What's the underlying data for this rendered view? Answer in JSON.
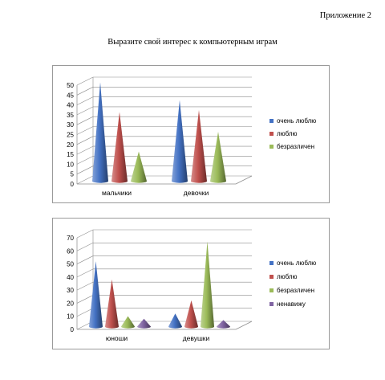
{
  "page": {
    "appendix_label": "Приложение 2",
    "title": "Выразите свой интерес к компьютерным играм"
  },
  "colors": {
    "blue": "#4472c4",
    "red": "#c0504d",
    "green": "#9bbb59",
    "purple": "#8064a2"
  },
  "chart_data": [
    {
      "type": "bar",
      "shape": "cone",
      "title": "",
      "xlabel": "",
      "ylabel": "",
      "ylim": [
        0,
        50
      ],
      "yticks": [
        0,
        5,
        10,
        15,
        20,
        25,
        30,
        35,
        40,
        45,
        50
      ],
      "grid": true,
      "legend_position": "right",
      "categories": [
        "мальчики",
        "девочки"
      ],
      "series": [
        {
          "name": "очень люблю",
          "color": "#4472c4",
          "values": [
            50,
            41
          ]
        },
        {
          "name": "люблю",
          "color": "#c0504d",
          "values": [
            35,
            36
          ]
        },
        {
          "name": "безразличен",
          "color": "#9bbb59",
          "values": [
            15,
            25
          ]
        }
      ]
    },
    {
      "type": "bar",
      "shape": "cone",
      "title": "",
      "xlabel": "",
      "ylabel": "",
      "ylim": [
        0,
        70
      ],
      "yticks": [
        0,
        10,
        20,
        30,
        40,
        50,
        60,
        70
      ],
      "grid": true,
      "legend_position": "right",
      "categories": [
        "юноши",
        "девушки"
      ],
      "series": [
        {
          "name": "очень люблю",
          "color": "#4472c4",
          "values": [
            50,
            10
          ]
        },
        {
          "name": "люблю",
          "color": "#c0504d",
          "values": [
            36,
            20
          ]
        },
        {
          "name": "безразличен",
          "color": "#9bbb59",
          "values": [
            8,
            65
          ]
        },
        {
          "name": "ненавижу",
          "color": "#8064a2",
          "values": [
            6,
            5
          ]
        }
      ]
    }
  ]
}
